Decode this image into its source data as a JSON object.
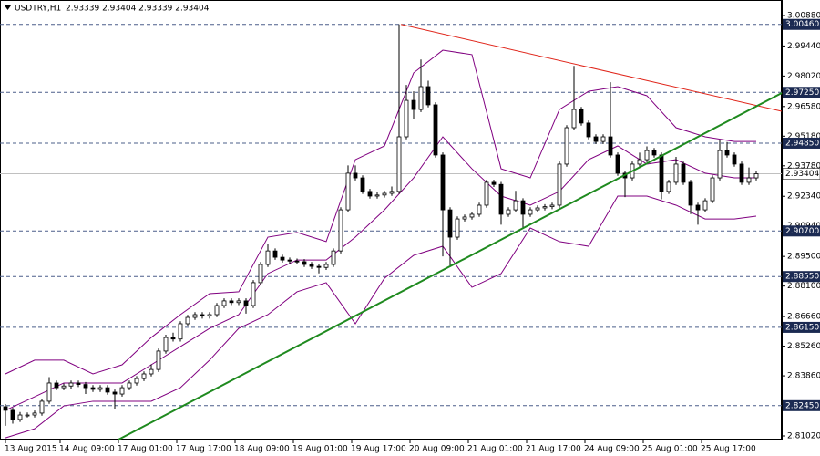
{
  "chart_data": {
    "type": "candlestick",
    "symbol": "USDTRY,H1",
    "ohlc_label": "2.93339 2.93404 2.93339 2.93404",
    "xlim": [
      -0.75,
      106.5
    ],
    "ylim": [
      2.80848,
      3.01612
    ],
    "xticks": [
      {
        "value": 0,
        "label": "13 Aug 2015"
      },
      {
        "value": 7.5,
        "label": "14 Aug 09:00"
      },
      {
        "value": 15.5,
        "label": "17 Aug 01:00"
      },
      {
        "value": 23.5,
        "label": "17 Aug 17:00"
      },
      {
        "value": 31.5,
        "label": "18 Aug 09:00"
      },
      {
        "value": 39.5,
        "label": "19 Aug 01:00"
      },
      {
        "value": 47.5,
        "label": "19 Aug 17:00"
      },
      {
        "value": 55.5,
        "label": "20 Aug 09:00"
      },
      {
        "value": 63.5,
        "label": "21 Aug 01:00"
      },
      {
        "value": 71.5,
        "label": "21 Aug 17:00"
      },
      {
        "value": 79.5,
        "label": "24 Aug 09:00"
      },
      {
        "value": 87.5,
        "label": "25 Aug 01:00"
      },
      {
        "value": 95.5,
        "label": "25 Aug 17:00"
      }
    ],
    "yticks": [
      {
        "value": 3.0088,
        "label": "3.00880"
      },
      {
        "value": 2.9944,
        "label": "2.99440"
      },
      {
        "value": 2.9802,
        "label": "2.98020"
      },
      {
        "value": 2.9658,
        "label": "2.96580"
      },
      {
        "value": 2.9518,
        "label": "2.95180"
      },
      {
        "value": 2.9378,
        "label": "2.93780"
      },
      {
        "value": 2.9234,
        "label": "2.92340"
      },
      {
        "value": 2.9094,
        "label": "2.90940"
      },
      {
        "value": 2.895,
        "label": "2.89500"
      },
      {
        "value": 2.881,
        "label": "2.88100"
      },
      {
        "value": 2.8666,
        "label": "2.86660"
      },
      {
        "value": 2.8526,
        "label": "2.85260"
      },
      {
        "value": 2.8386,
        "label": "2.83860"
      },
      {
        "value": 2.8242,
        "label": "2.82420"
      },
      {
        "value": 2.8102,
        "label": "2.81020"
      }
    ],
    "levels": [
      {
        "value": 3.0046,
        "label": "3.00460"
      },
      {
        "value": 2.9725,
        "label": "2.97250"
      },
      {
        "value": 2.9485,
        "label": "2.94850"
      },
      {
        "value": 2.907,
        "label": "2.90700"
      },
      {
        "value": 2.8855,
        "label": "2.88550"
      },
      {
        "value": 2.8615,
        "label": "2.86150"
      },
      {
        "value": 2.8245,
        "label": "2.82450"
      }
    ],
    "level_color": "#4b5f8a",
    "level_label_color": "#1b2a52",
    "current_price": 2.93404,
    "candle_color": "#000000",
    "open": [
      2.824,
      2.8223,
      2.818,
      2.8201,
      2.8201,
      2.821,
      2.8266,
      2.8352,
      2.833,
      2.8338,
      2.8352,
      2.8345,
      2.833,
      2.8322,
      2.833,
      2.8309,
      2.83,
      2.833,
      2.8352,
      2.8373,
      2.8395,
      2.8416,
      2.8503,
      2.8567,
      2.856,
      2.8632,
      2.8662,
      2.8675,
      2.8668,
      2.8675,
      2.8718,
      2.874,
      2.8732,
      2.874,
      2.8718,
      2.8826,
      2.8912,
      2.8976,
      2.8946,
      2.8933,
      2.8928,
      2.8925,
      2.8912,
      2.8903,
      2.8898,
      2.8912,
      2.8976,
      2.917,
      2.9343,
      2.9321,
      2.9257,
      2.9235,
      2.924,
      2.9248,
      2.9257,
      2.9515,
      2.9687,
      2.9644,
      2.9752,
      2.9666,
      2.9429,
      2.917,
      2.9041,
      2.9127,
      2.9136,
      2.9149,
      2.9192,
      2.93,
      2.929,
      2.9149,
      2.917,
      2.9213,
      2.9149,
      2.917,
      2.9179,
      2.9185,
      2.9192,
      2.9386,
      2.9558,
      2.9644,
      2.958,
      2.9515,
      2.9493,
      2.9515,
      2.9429,
      2.9343,
      2.9321,
      2.9386,
      2.9407,
      2.945,
      2.9429,
      2.9257,
      2.93,
      2.9386,
      2.93,
      2.9192,
      2.917,
      2.9213,
      2.9321,
      2.945,
      2.9429,
      2.9386,
      2.93,
      2.9321
    ],
    "high": [
      2.8252,
      2.8235,
      2.8215,
      2.8213,
      2.8222,
      2.8278,
      2.838,
      2.8364,
      2.835,
      2.8364,
      2.8364,
      2.8357,
      2.8342,
      2.8342,
      2.8342,
      2.8321,
      2.8342,
      2.8364,
      2.8385,
      2.8407,
      2.844,
      2.8515,
      2.858,
      2.859,
      2.8644,
      2.8674,
      2.8687,
      2.8687,
      2.8687,
      2.873,
      2.8752,
      2.8752,
      2.8752,
      2.8752,
      2.8838,
      2.8924,
      2.901,
      2.8988,
      2.8958,
      2.8945,
      2.894,
      2.8937,
      2.8924,
      2.8915,
      2.8924,
      2.8988,
      2.9182,
      2.938,
      2.938,
      2.9333,
      2.9269,
      2.9252,
      2.926,
      2.928,
      3.0046,
      2.976,
      2.973,
      2.988,
      2.978,
      2.9678,
      2.9441,
      2.9182,
      2.9139,
      2.9148,
      2.9161,
      2.9204,
      2.9312,
      2.9312,
      2.9302,
      2.9182,
      2.926,
      2.9225,
      2.9182,
      2.9191,
      2.9197,
      2.9204,
      2.9398,
      2.957,
      2.985,
      2.9656,
      2.9592,
      2.9527,
      2.9527,
      2.9773,
      2.9441,
      2.9355,
      2.9398,
      2.944,
      2.947,
      2.9462,
      2.9441,
      2.9312,
      2.942,
      2.9398,
      2.9312,
      2.9204,
      2.9225,
      2.9333,
      2.95,
      2.949,
      2.9441,
      2.9398,
      2.937,
      2.9352
    ],
    "low": [
      2.815,
      2.816,
      2.8168,
      2.8189,
      2.8189,
      2.8198,
      2.8254,
      2.8318,
      2.8318,
      2.8326,
      2.8333,
      2.83,
      2.831,
      2.831,
      2.8297,
      2.8231,
      2.8288,
      2.8318,
      2.834,
      2.8361,
      2.8383,
      2.8404,
      2.8491,
      2.8548,
      2.8548,
      2.862,
      2.865,
      2.8656,
      2.8656,
      2.8663,
      2.8706,
      2.872,
      2.872,
      2.868,
      2.8706,
      2.8814,
      2.89,
      2.8934,
      2.8921,
      2.8916,
      2.8913,
      2.89,
      2.8891,
      2.887,
      2.8886,
      2.89,
      2.8964,
      2.9158,
      2.9309,
      2.9245,
      2.9223,
      2.9223,
      2.9228,
      2.9236,
      2.9245,
      2.9503,
      2.96,
      2.9632,
      2.9654,
      2.9417,
      2.895,
      2.89,
      2.9029,
      2.9115,
      2.9124,
      2.9137,
      2.918,
      2.9278,
      2.91,
      2.9137,
      2.9158,
      2.908,
      2.9137,
      2.9158,
      2.9167,
      2.9173,
      2.918,
      2.9374,
      2.9546,
      2.9568,
      2.9503,
      2.9481,
      2.9481,
      2.9417,
      2.9331,
      2.923,
      2.9309,
      2.9374,
      2.9395,
      2.9417,
      2.922,
      2.9245,
      2.9288,
      2.9288,
      2.915,
      2.91,
      2.9158,
      2.9201,
      2.9309,
      2.9417,
      2.9374,
      2.9288,
      2.9288,
      2.9309
    ],
    "close": [
      2.8223,
      2.818,
      2.8201,
      2.8201,
      2.821,
      2.8266,
      2.8352,
      2.833,
      2.8338,
      2.8352,
      2.8345,
      2.833,
      2.8322,
      2.833,
      2.8309,
      2.83,
      2.833,
      2.8352,
      2.8373,
      2.8395,
      2.8416,
      2.8503,
      2.8567,
      2.856,
      2.8632,
      2.8662,
      2.8675,
      2.8668,
      2.8675,
      2.8718,
      2.874,
      2.8732,
      2.874,
      2.8718,
      2.8826,
      2.8912,
      2.8976,
      2.8946,
      2.8933,
      2.8928,
      2.8925,
      2.8912,
      2.8903,
      2.8898,
      2.8912,
      2.8976,
      2.917,
      2.9343,
      2.9321,
      2.9257,
      2.9235,
      2.924,
      2.9248,
      2.9257,
      2.9515,
      2.9687,
      2.9644,
      2.9752,
      2.9666,
      2.9429,
      2.917,
      2.9041,
      2.9127,
      2.9136,
      2.9149,
      2.9192,
      2.93,
      2.929,
      2.9149,
      2.917,
      2.9213,
      2.9149,
      2.917,
      2.9179,
      2.9185,
      2.9192,
      2.9386,
      2.9558,
      2.9644,
      2.958,
      2.9515,
      2.9493,
      2.9515,
      2.9429,
      2.9343,
      2.9321,
      2.9386,
      2.9407,
      2.945,
      2.9429,
      2.9257,
      2.93,
      2.9386,
      2.93,
      2.9192,
      2.917,
      2.9213,
      2.9321,
      2.945,
      2.9429,
      2.9386,
      2.93,
      2.9321,
      2.93404
    ],
    "bands": {
      "color": "#800080",
      "x": [
        0,
        4,
        8,
        12,
        16,
        20,
        24,
        28,
        32,
        36,
        40,
        44,
        48,
        52,
        56,
        60,
        64,
        68,
        72,
        76,
        80,
        84,
        88,
        92,
        96,
        100,
        103
      ],
      "upper": [
        2.8395,
        2.846,
        2.846,
        2.8395,
        2.8438,
        2.8567,
        2.8675,
        2.8774,
        2.8783,
        2.9041,
        2.9063,
        2.902,
        2.9407,
        2.9472,
        2.9817,
        2.9924,
        2.9903,
        2.9364,
        2.9321,
        2.9644,
        2.973,
        2.9752,
        2.9709,
        2.9558,
        2.9515,
        2.9493,
        2.9493
      ],
      "middle": [
        2.8223,
        2.8287,
        2.8352,
        2.8352,
        2.8352,
        2.8438,
        2.8524,
        2.861,
        2.8675,
        2.8869,
        2.8933,
        2.8933,
        2.9041,
        2.917,
        2.9321,
        2.9515,
        2.9364,
        2.9235,
        2.9192,
        2.9257,
        2.9407,
        2.9472,
        2.9386,
        2.9407,
        2.9343,
        2.9321,
        2.9321
      ],
      "lower": [
        2.8093,
        2.8136,
        2.8244,
        2.8266,
        2.8266,
        2.8266,
        2.833,
        2.846,
        2.861,
        2.8675,
        2.8783,
        2.8826,
        2.8632,
        2.8847,
        2.8955,
        2.8998,
        2.8804,
        2.8869,
        2.9084,
        2.902,
        2.8998,
        2.9235,
        2.9235,
        2.9192,
        2.9127,
        2.9127,
        2.914
      ]
    },
    "trendlines": [
      {
        "color": "#e0261b",
        "x": [
          54.25,
          106.5
        ],
        "y": [
          3.0046,
          2.96356
        ]
      },
      {
        "color": "#1f8a1f",
        "x": [
          15.5,
          106.5
        ],
        "y": [
          2.80848,
          2.97218
        ]
      }
    ]
  }
}
